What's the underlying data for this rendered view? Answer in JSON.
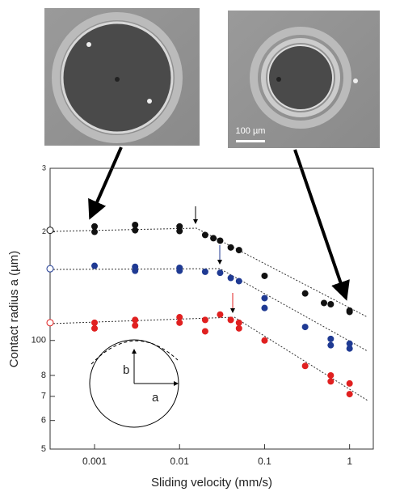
{
  "chart_data": {
    "type": "scatter",
    "xlabel": "Sliding velocity (mm/s)",
    "ylabel": "Contact radius a (µm)",
    "xlim": [
      0.0003,
      1.9
    ],
    "ylim": [
      50,
      300
    ],
    "xscale": "log",
    "yscale": "log",
    "xticks": [
      0.001,
      0.01,
      0.1,
      1
    ],
    "yticks": [
      {
        "value": 300,
        "label": "3"
      },
      {
        "value": 200,
        "label": "2"
      },
      100,
      {
        "value": 80,
        "label": "8"
      },
      {
        "value": 70,
        "label": "7"
      },
      {
        "value": 60,
        "label": "6"
      },
      {
        "value": 50,
        "label": "5"
      }
    ],
    "series": [
      {
        "color": "#111111",
        "x": [
          0.001,
          0.001,
          0.003,
          0.003,
          0.01,
          0.01,
          0.02,
          0.025,
          0.03,
          0.04,
          0.05,
          0.1,
          0.3,
          0.5,
          0.6,
          1,
          1
        ],
        "values": [
          207,
          200,
          209,
          202,
          207,
          201,
          196,
          192,
          189,
          181,
          178,
          151,
          135,
          127,
          126,
          121,
          120
        ]
      },
      {
        "color": "#1f3a93",
        "x": [
          0.001,
          0.003,
          0.003,
          0.01,
          0.01,
          0.02,
          0.03,
          0.04,
          0.05,
          0.1,
          0.1,
          0.3,
          0.6,
          0.6,
          1,
          1
        ],
        "values": [
          161,
          160,
          156,
          159,
          156,
          155,
          154,
          149,
          146,
          131,
          123,
          109,
          101,
          97,
          98,
          95
        ]
      },
      {
        "color": "#e02020",
        "x": [
          0.001,
          0.001,
          0.003,
          0.003,
          0.01,
          0.01,
          0.02,
          0.02,
          0.03,
          0.04,
          0.05,
          0.05,
          0.1,
          0.3,
          0.6,
          0.6,
          1,
          1
        ],
        "values": [
          112,
          108,
          114,
          110,
          116,
          112,
          114,
          106,
          118,
          114,
          112,
          108,
          100,
          85,
          80,
          77,
          76,
          71
        ]
      },
      {
        "marker": "open",
        "colors": [
          "#111111",
          "#1f3a93",
          "#e02020"
        ],
        "x": [
          0.0003,
          0.0003,
          0.0003
        ],
        "values": [
          202,
          158,
          112
        ]
      }
    ],
    "inset_labels": [
      "b",
      "a"
    ],
    "scale_bar": "100 µm"
  }
}
